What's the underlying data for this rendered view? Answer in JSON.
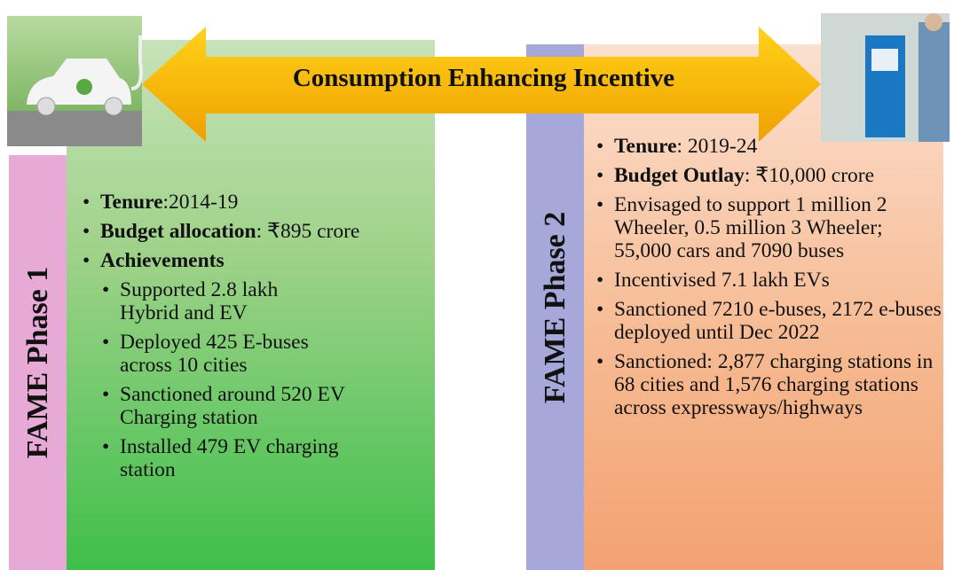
{
  "arrow": {
    "label": "Consumption Enhancing Incentive"
  },
  "phase1": {
    "title": "FAME Phase 1",
    "items": [
      {
        "bold": "Tenure",
        "text": ":2014-19"
      },
      {
        "bold": "Budget allocation",
        "text": ": ₹895 crore"
      },
      {
        "bold": "Achievements"
      }
    ],
    "subitems": [
      "Supported 2.8 lakh Hybrid and EV",
      "Deployed 425 E-buses across 10 cities",
      "Sanctioned around 520 EV Charging station",
      "Installed 479 EV charging station"
    ]
  },
  "phase2": {
    "title": "FAME Phase 2",
    "items": [
      {
        "bold": "Tenure",
        "text": ": 2019-24"
      },
      {
        "bold": "Budget Outlay",
        "text": ": ₹10,000 crore"
      },
      {
        "text": "Envisaged to support 1 million 2 Wheeler, 0.5 million 3 Wheeler; 55,000 cars and 7090 buses"
      },
      {
        "text": "Incentivised 7.1 lakh EVs"
      },
      {
        "text": "Sanctioned 7210 e-buses, 2172 e-buses deployed until Dec 2022"
      },
      {
        "text": "Sanctioned: 2,877 charging stations in 68 cities and 1,576 charging stations across expressways/highways"
      }
    ]
  }
}
